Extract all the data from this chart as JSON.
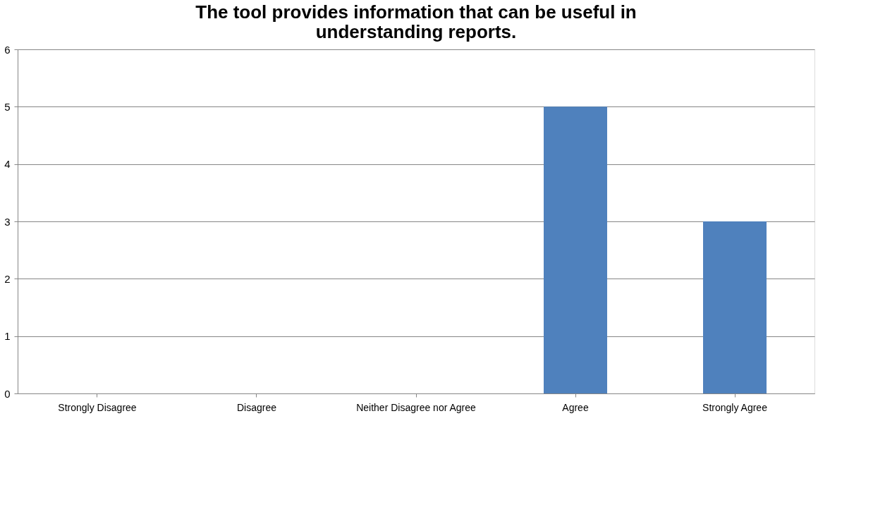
{
  "chart_data": {
    "type": "bar",
    "title": "The tool provides information that can be useful in understanding reports.",
    "categories": [
      "Strongly Disagree",
      "Disagree",
      "Neither Disagree nor Agree",
      "Agree",
      "Strongly Agree"
    ],
    "values": [
      0,
      0,
      0,
      5,
      3
    ],
    "color": "#4f81bd",
    "ylim": [
      0,
      6
    ],
    "yticks": [
      0,
      1,
      2,
      3,
      4,
      5,
      6
    ],
    "grid": "y"
  }
}
